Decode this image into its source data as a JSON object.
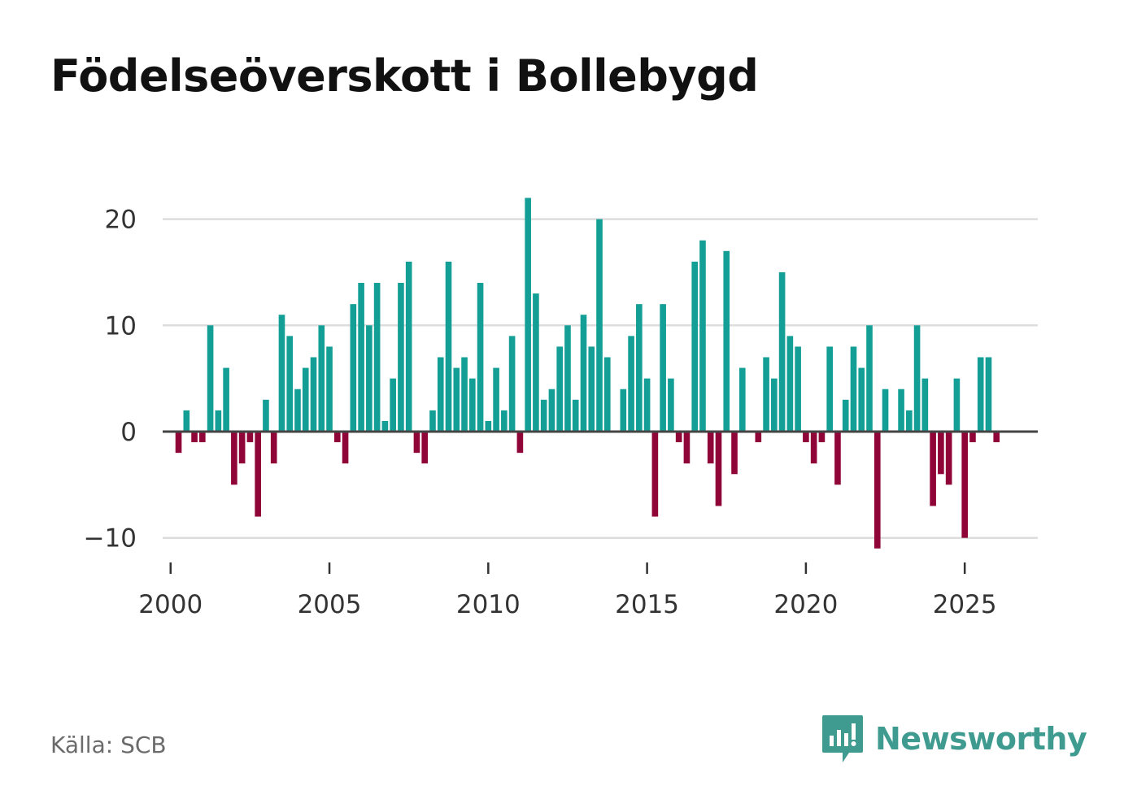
{
  "title": "Födelseöverskott i Bollebygd",
  "source": "Källa: SCB",
  "brand": {
    "name": "Newsworthy",
    "icon": "newsworthy-logo-icon",
    "color": "#3f9b8f"
  },
  "colors": {
    "positive": "#139f96",
    "negative": "#900537",
    "grid": "#dddddd",
    "zero_line": "#444444"
  },
  "chart_data": {
    "type": "bar",
    "title": "Födelseöverskott i Bollebygd",
    "xlabel": "",
    "ylabel": "",
    "ylim": [
      -12,
      24
    ],
    "xlim": [
      1999.75,
      2027.3
    ],
    "yticks": [
      20,
      10,
      0,
      -10
    ],
    "ytick_labels": [
      "20",
      "10",
      "0",
      "−10"
    ],
    "xticks": [
      2000,
      2005,
      2010,
      2015,
      2020,
      2025
    ],
    "xtick_labels": [
      "2000",
      "2005",
      "2010",
      "2015",
      "2020",
      "2025"
    ],
    "x_start": 2000.0,
    "x_step": 0.25,
    "values": [
      0,
      -2,
      2,
      -1,
      -1,
      10,
      2,
      6,
      -5,
      -3,
      -1,
      -8,
      3,
      -3,
      11,
      9,
      4,
      6,
      7,
      10,
      8,
      -1,
      -3,
      12,
      14,
      10,
      14,
      1,
      5,
      14,
      16,
      -2,
      -3,
      2,
      7,
      16,
      6,
      7,
      5,
      14,
      1,
      6,
      2,
      9,
      -2,
      22,
      13,
      3,
      4,
      8,
      10,
      3,
      11,
      8,
      20,
      7,
      0,
      4,
      9,
      12,
      5,
      -8,
      12,
      5,
      -1,
      -3,
      16,
      18,
      -3,
      -7,
      17,
      -4,
      6,
      0,
      -1,
      7,
      5,
      15,
      9,
      8,
      -1,
      -3,
      -1,
      8,
      -5,
      3,
      8,
      6,
      10,
      -11,
      4,
      0,
      4,
      2,
      10,
      5,
      -7,
      -4,
      -5,
      5,
      -10,
      -1,
      7,
      7,
      -1
    ]
  }
}
